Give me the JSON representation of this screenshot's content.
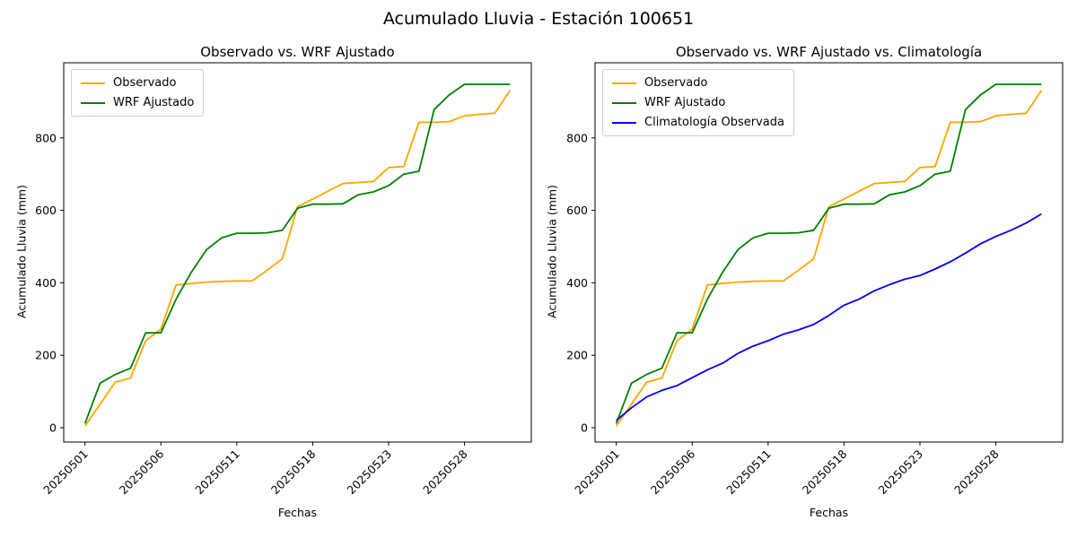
{
  "figure": {
    "suptitle": "Acumulado Lluvia - Estación 100651",
    "background": "#ffffff",
    "text_color": "#000000"
  },
  "axes": {
    "yticks": [
      0,
      200,
      400,
      600,
      800
    ],
    "xtick_indices": [
      0,
      5,
      10,
      15,
      20,
      25
    ]
  },
  "chart_data": [
    {
      "type": "line",
      "title": "Observado vs. WRF Ajustado",
      "xlabel": "Fechas",
      "ylabel": "Acumulado Lluvia (mm)",
      "grid": false,
      "legend_position": "upper-left",
      "ylim": [
        -47,
        995
      ],
      "x": [
        "20250501",
        "20250502",
        "20250503",
        "20250504",
        "20250505",
        "20250506",
        "20250507",
        "20250508",
        "20250509",
        "20250510",
        "20250511",
        "20250512",
        "20250513",
        "20250514",
        "20250515",
        "20250518",
        "20250519",
        "20250520",
        "20250521",
        "20250522",
        "20250523",
        "20250524",
        "20250525",
        "20250526",
        "20250527",
        "20250528",
        "20250529",
        "20250530",
        "20250531"
      ],
      "series": [
        {
          "name": "Observado",
          "color": "#FFA500",
          "values": [
            5,
            65,
            126,
            137,
            240,
            272,
            394,
            398,
            402,
            404,
            405,
            405,
            435,
            466,
            610,
            631,
            653,
            674,
            677,
            680,
            718,
            721,
            843,
            843,
            845,
            861,
            865,
            868,
            931
          ]
        },
        {
          "name": "WRF Ajustado",
          "color": "#008000",
          "values": [
            12,
            123,
            147,
            164,
            262,
            262,
            355,
            429,
            491,
            524,
            537,
            537,
            538,
            545,
            606,
            617,
            617,
            618,
            643,
            651,
            668,
            700,
            708,
            878,
            919,
            948,
            948,
            948,
            948
          ]
        }
      ]
    },
    {
      "type": "line",
      "title": "Observado vs. WRF Ajustado vs. Climatología",
      "xlabel": "Fechas",
      "ylabel": "Acumulado Lluvia (mm)",
      "grid": false,
      "legend_position": "upper-left",
      "ylim": [
        -47,
        995
      ],
      "x": [
        "20250501",
        "20250502",
        "20250503",
        "20250504",
        "20250505",
        "20250506",
        "20250507",
        "20250508",
        "20250509",
        "20250510",
        "20250511",
        "20250512",
        "20250513",
        "20250514",
        "20250515",
        "20250518",
        "20250519",
        "20250520",
        "20250521",
        "20250522",
        "20250523",
        "20250524",
        "20250525",
        "20250526",
        "20250527",
        "20250528",
        "20250529",
        "20250530",
        "20250531"
      ],
      "series": [
        {
          "name": "Observado",
          "color": "#FFA500",
          "values": [
            5,
            65,
            126,
            137,
            240,
            272,
            394,
            398,
            402,
            404,
            405,
            405,
            435,
            466,
            610,
            631,
            653,
            674,
            677,
            680,
            718,
            721,
            843,
            843,
            845,
            861,
            865,
            868,
            931
          ]
        },
        {
          "name": "WRF Ajustado",
          "color": "#008000",
          "values": [
            12,
            123,
            147,
            164,
            262,
            262,
            355,
            429,
            491,
            524,
            537,
            537,
            538,
            545,
            606,
            617,
            617,
            618,
            643,
            651,
            668,
            700,
            708,
            878,
            919,
            948,
            948,
            948,
            948
          ]
        },
        {
          "name": "Climatología Observada",
          "color": "#0000FF",
          "values": [
            20,
            55,
            85,
            103,
            116,
            138,
            160,
            178,
            205,
            225,
            240,
            258,
            270,
            285,
            310,
            338,
            355,
            378,
            395,
            410,
            420,
            438,
            458,
            482,
            508,
            528,
            545,
            565,
            590
          ]
        }
      ]
    }
  ]
}
